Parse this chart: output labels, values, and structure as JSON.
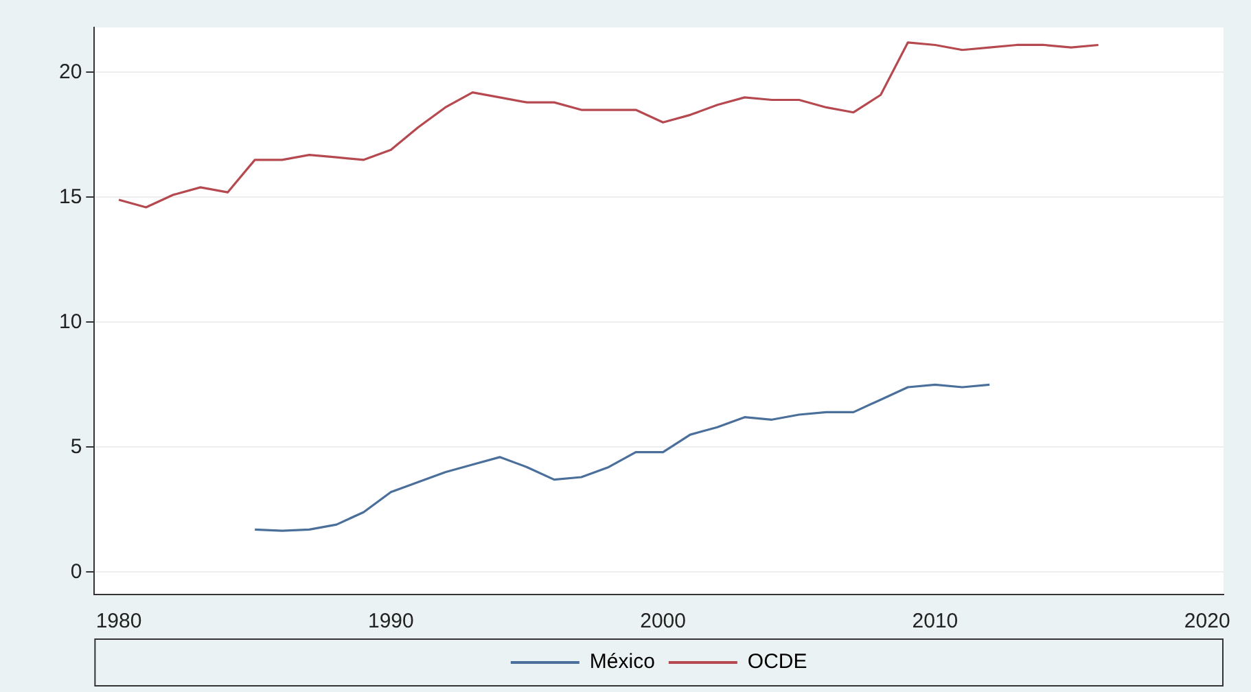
{
  "chart_data": {
    "type": "line",
    "xlim": [
      1979.1,
      2020.6
    ],
    "xticks": [
      1980,
      1990,
      2000,
      2010,
      2020
    ],
    "ylim": [
      -0.9,
      21.8
    ],
    "yticks": [
      0,
      5,
      10,
      15,
      20
    ],
    "grid": "y",
    "legend": "bottom",
    "marker": "none",
    "line_style": "solid",
    "series": [
      {
        "name": "México",
        "color": "#4a6f9a",
        "x": [
          1985,
          1986,
          1987,
          1988,
          1989,
          1990,
          1991,
          1992,
          1993,
          1994,
          1995,
          1996,
          1997,
          1998,
          1999,
          2000,
          2001,
          2002,
          2003,
          2004,
          2005,
          2006,
          2007,
          2008,
          2009,
          2010,
          2011,
          2012
        ],
        "values": [
          1.7,
          1.65,
          1.7,
          1.9,
          2.4,
          3.2,
          3.6,
          4.0,
          4.3,
          4.6,
          4.2,
          3.7,
          3.8,
          4.2,
          4.8,
          4.8,
          5.5,
          5.8,
          6.2,
          6.1,
          6.3,
          6.4,
          6.4,
          6.9,
          7.4,
          7.5,
          7.4,
          7.5
        ]
      },
      {
        "name": "OCDE",
        "color": "#b5494f",
        "x": [
          1980,
          1981,
          1982,
          1983,
          1984,
          1985,
          1986,
          1987,
          1988,
          1989,
          1990,
          1991,
          1992,
          1993,
          1994,
          1995,
          1996,
          1997,
          1998,
          1999,
          2000,
          2001,
          2002,
          2003,
          2004,
          2005,
          2006,
          2007,
          2008,
          2009,
          2010,
          2011,
          2012,
          2013,
          2014,
          2015,
          2016
        ],
        "values": [
          14.9,
          14.6,
          15.1,
          15.4,
          15.2,
          16.5,
          16.5,
          16.7,
          16.6,
          16.5,
          16.9,
          17.8,
          18.6,
          19.2,
          19.0,
          18.8,
          18.8,
          18.5,
          18.5,
          18.5,
          18.0,
          18.3,
          18.7,
          19.0,
          18.9,
          18.9,
          18.6,
          18.4,
          19.1,
          21.2,
          21.1,
          20.9,
          21.0,
          21.1,
          21.1,
          21.0,
          21.1
        ]
      }
    ]
  }
}
